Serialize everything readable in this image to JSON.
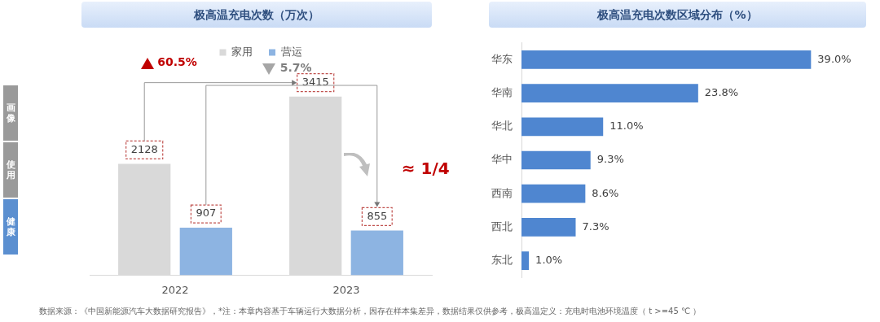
{
  "chart_data": [
    {
      "type": "bar",
      "title": "极高温充电次数（万次）",
      "categories": [
        "2022",
        "2023"
      ],
      "series": [
        {
          "name": "家用",
          "color": "#d9d9d9",
          "values": [
            2128,
            3415
          ]
        },
        {
          "name": "营运",
          "color": "#8db4e2",
          "values": [
            907,
            855
          ]
        }
      ],
      "data_labels": true,
      "legend": "top",
      "annotations": [
        "60.5%",
        "5.7%",
        "≈ 1/4",
        "画像",
        "使用",
        "健康",
        "数据来源：《中国新能源汽车大数据研究报告》，*注：本章内容基于车辆运行大数据分析，因存在样本集差异，数据结果仅供参考，极高温定义：充电时电池环境温度（ t >=45 ℃ ）"
      ]
    },
    {
      "type": "bar",
      "title": "极高温充电次数区域分布（%）",
      "orientation": "horizontal",
      "categories": [
        "华东",
        "华南",
        "华北",
        "华中",
        "西南",
        "西北",
        "东北"
      ],
      "values": [
        39.0,
        23.8,
        11.0,
        9.3,
        8.6,
        7.3,
        1.0
      ],
      "color": "#4f86d0",
      "value_labels": [
        "39.0%",
        "23.8%",
        "11.0%",
        "9.3%",
        "8.6%",
        "7.3%",
        "1.0%"
      ]
    }
  ]
}
